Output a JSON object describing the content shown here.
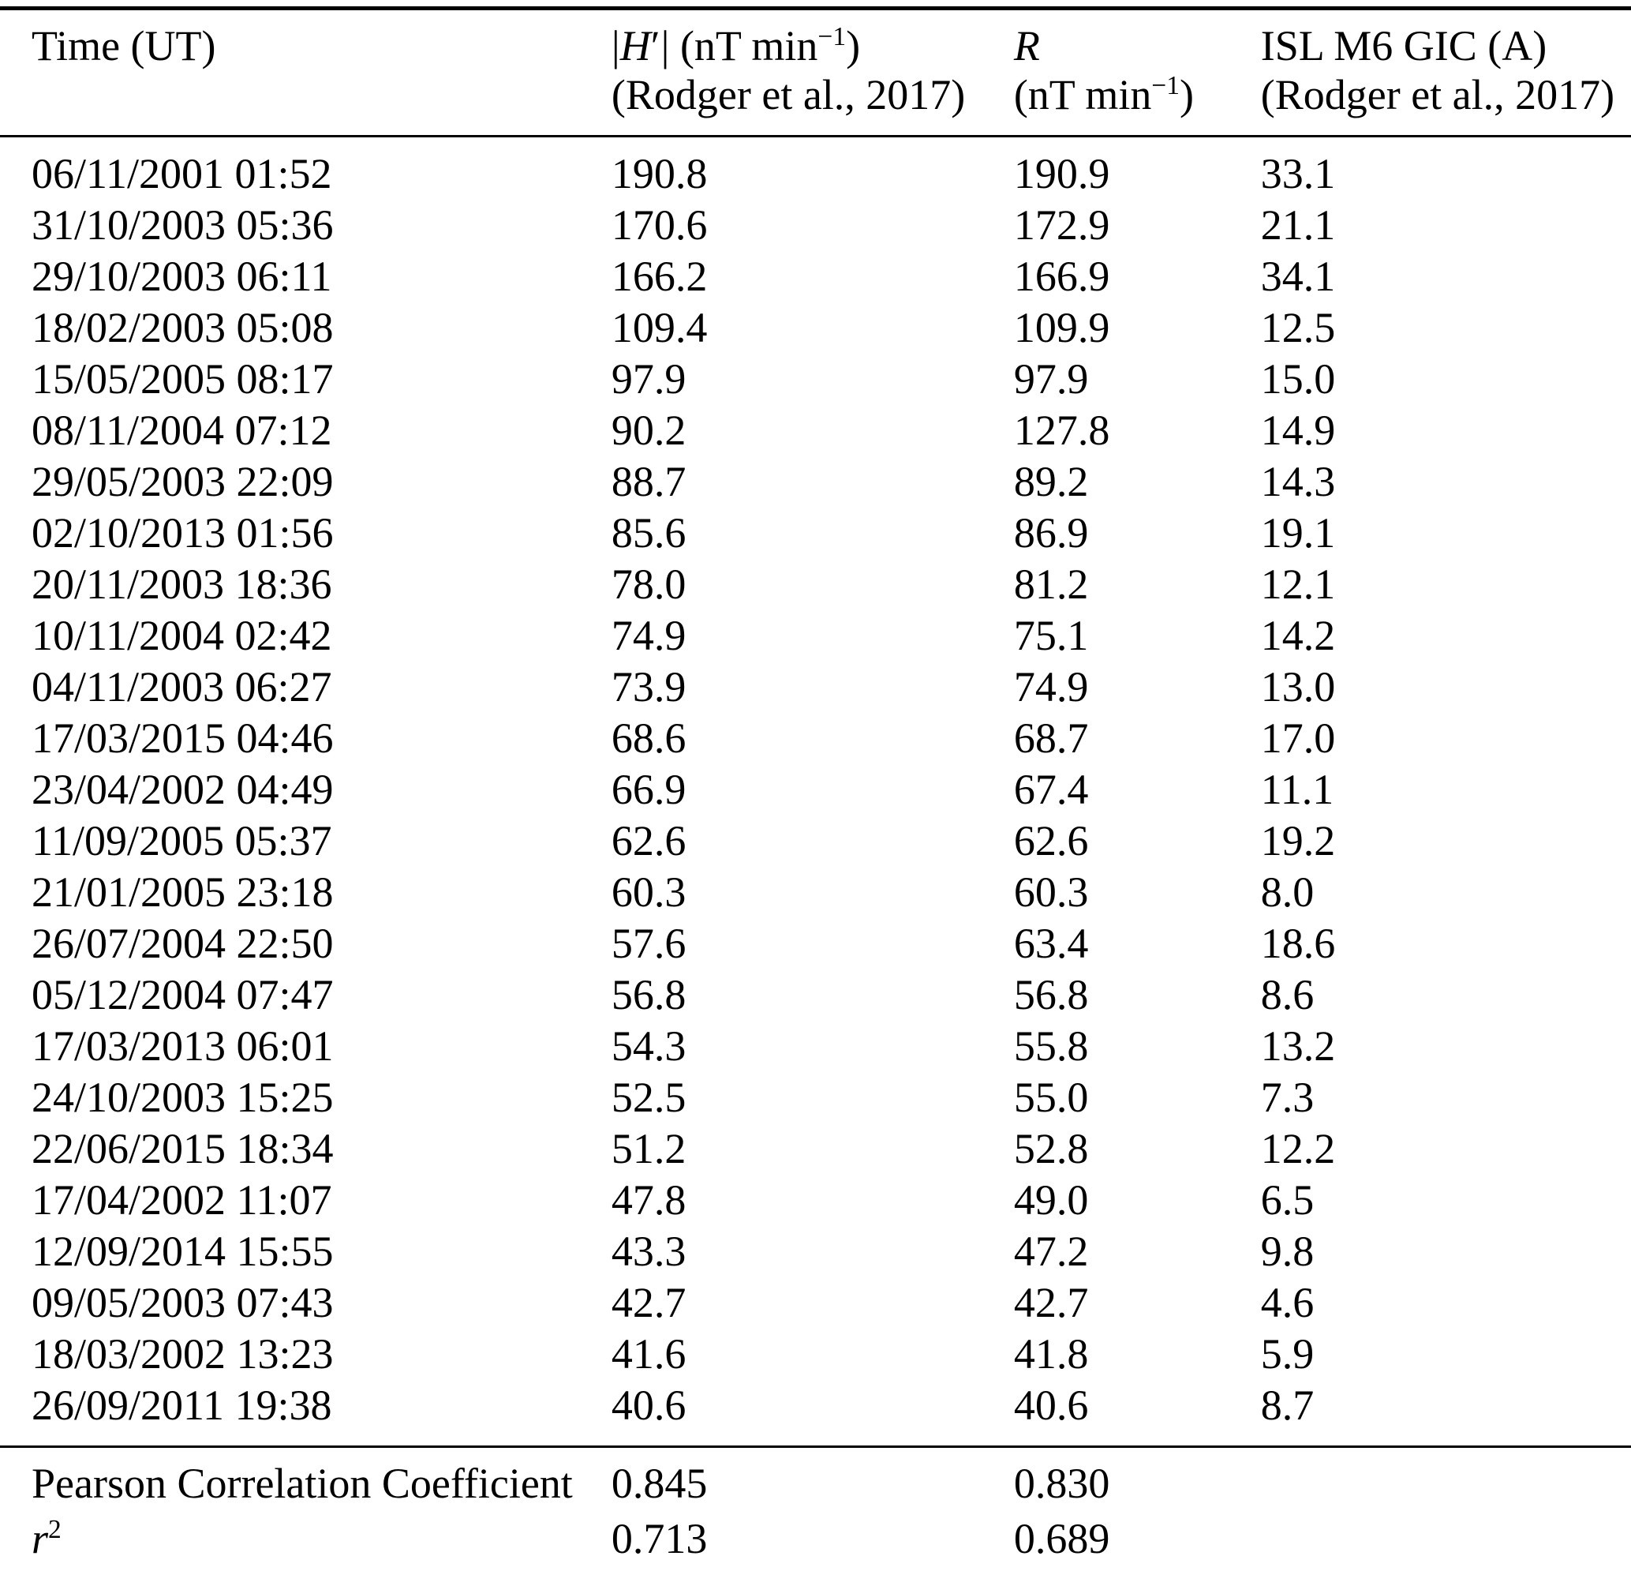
{
  "colors": {
    "background": "#ffffff",
    "text": "#000000",
    "rule": "#000000"
  },
  "header": {
    "col_time": {
      "line1": "Time (UT)"
    },
    "col_h": {
      "math_open": "|",
      "math_symbol": "H",
      "math_prime": "′",
      "math_close": "|",
      "unit_open": " (nT min",
      "unit_sup": "−1",
      "unit_close": ")",
      "line2": "(Rodger et al., 2017)"
    },
    "col_r": {
      "math_symbol": "R",
      "unit_open": "(nT min",
      "unit_sup": "−1",
      "unit_close": ")"
    },
    "col_gic": {
      "line1": "ISL M6 GIC (A)",
      "line2": "(Rodger et al., 2017)"
    }
  },
  "rows": [
    {
      "time": "06/11/2001 01:52",
      "h": "190.8",
      "r": "190.9",
      "gic": "33.1"
    },
    {
      "time": "31/10/2003 05:36",
      "h": "170.6",
      "r": "172.9",
      "gic": "21.1"
    },
    {
      "time": "29/10/2003 06:11",
      "h": "166.2",
      "r": "166.9",
      "gic": "34.1"
    },
    {
      "time": "18/02/2003 05:08",
      "h": "109.4",
      "r": "109.9",
      "gic": "12.5"
    },
    {
      "time": "15/05/2005 08:17",
      "h": "97.9",
      "r": "97.9",
      "gic": "15.0"
    },
    {
      "time": "08/11/2004 07:12",
      "h": "90.2",
      "r": "127.8",
      "gic": "14.9"
    },
    {
      "time": "29/05/2003 22:09",
      "h": "88.7",
      "r": "89.2",
      "gic": "14.3"
    },
    {
      "time": "02/10/2013 01:56",
      "h": "85.6",
      "r": "86.9",
      "gic": "19.1"
    },
    {
      "time": "20/11/2003 18:36",
      "h": "78.0",
      "r": "81.2",
      "gic": "12.1"
    },
    {
      "time": "10/11/2004 02:42",
      "h": "74.9",
      "r": "75.1",
      "gic": "14.2"
    },
    {
      "time": "04/11/2003 06:27",
      "h": "73.9",
      "r": "74.9",
      "gic": "13.0"
    },
    {
      "time": "17/03/2015 04:46",
      "h": "68.6",
      "r": "68.7",
      "gic": "17.0"
    },
    {
      "time": "23/04/2002 04:49",
      "h": "66.9",
      "r": "67.4",
      "gic": "11.1"
    },
    {
      "time": "11/09/2005 05:37",
      "h": "62.6",
      "r": "62.6",
      "gic": "19.2"
    },
    {
      "time": "21/01/2005 23:18",
      "h": "60.3",
      "r": "60.3",
      "gic": "8.0"
    },
    {
      "time": "26/07/2004 22:50",
      "h": "57.6",
      "r": "63.4",
      "gic": "18.6"
    },
    {
      "time": "05/12/2004 07:47",
      "h": "56.8",
      "r": "56.8",
      "gic": "8.6"
    },
    {
      "time": "17/03/2013 06:01",
      "h": "54.3",
      "r": "55.8",
      "gic": "13.2"
    },
    {
      "time": "24/10/2003 15:25",
      "h": "52.5",
      "r": "55.0",
      "gic": "7.3"
    },
    {
      "time": "22/06/2015 18:34",
      "h": "51.2",
      "r": "52.8",
      "gic": "12.2"
    },
    {
      "time": "17/04/2002 11:07",
      "h": "47.8",
      "r": "49.0",
      "gic": "6.5"
    },
    {
      "time": "12/09/2014 15:55",
      "h": "43.3",
      "r": "47.2",
      "gic": "9.8"
    },
    {
      "time": "09/05/2003 07:43",
      "h": "42.7",
      "r": "42.7",
      "gic": "4.6"
    },
    {
      "time": "18/03/2002 13:23",
      "h": "41.6",
      "r": "41.8",
      "gic": "5.9"
    },
    {
      "time": "26/09/2011 19:38",
      "h": "40.6",
      "r": "40.6",
      "gic": "8.7"
    }
  ],
  "footer": {
    "pearson": {
      "label": "Pearson Correlation Coefficient",
      "h": "0.845",
      "r": "0.830",
      "gic": ""
    },
    "r_squared": {
      "symbol": "r",
      "sup": "2",
      "h": "0.713",
      "r": "0.689",
      "gic": ""
    }
  }
}
